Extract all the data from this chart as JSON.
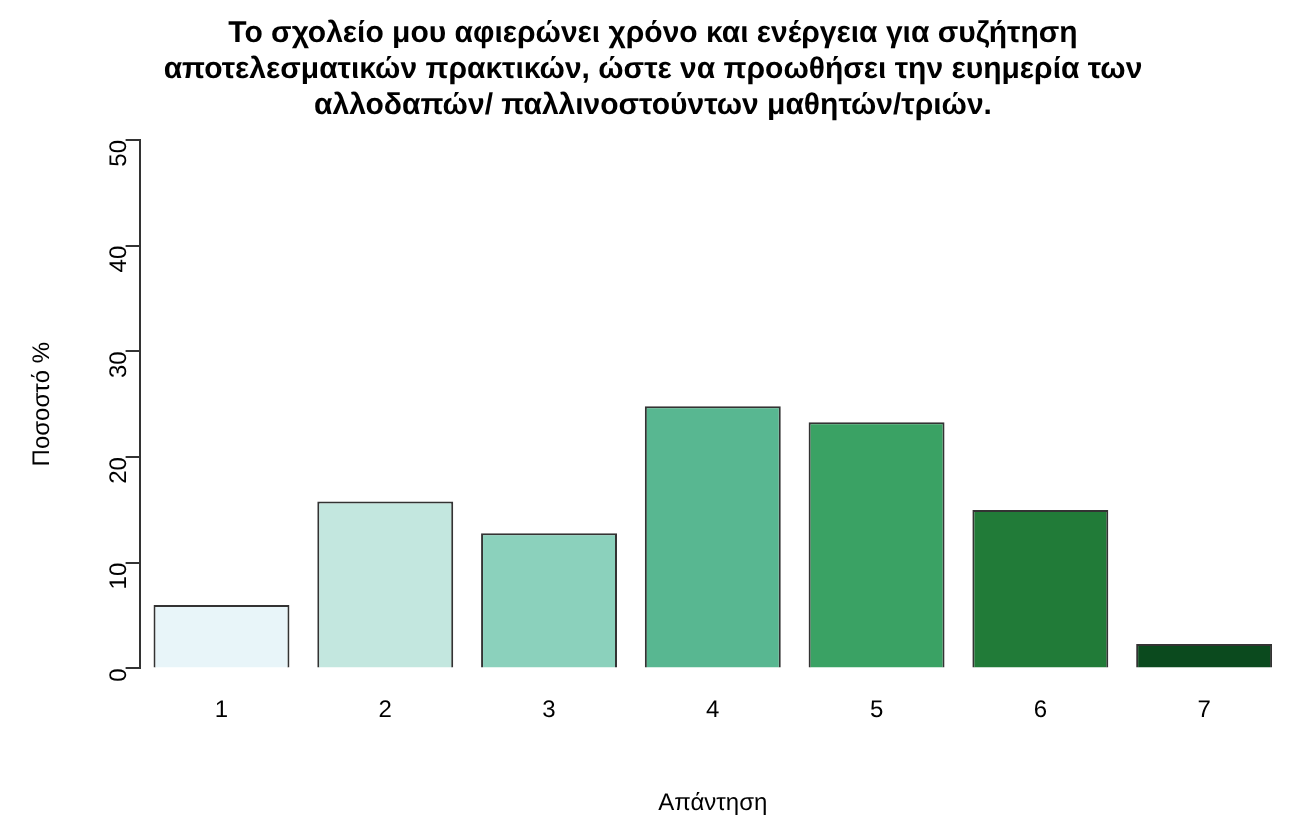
{
  "chart_data": {
    "type": "bar",
    "title": "Το σχολείο μου αφιερώνει χρόνο και ενέργεια για συζήτηση\nαποτελεσματικών πρακτικών, ώστε να προωθήσει την ευημερία των\nαλλοδαπών/ παλλινοστούντων μαθητών/τριών.",
    "xlabel": "Απάντηση",
    "ylabel": "Ποσοστό %",
    "categories": [
      "1",
      "2",
      "3",
      "4",
      "5",
      "6",
      "7"
    ],
    "values": [
      6.0,
      15.8,
      12.8,
      24.8,
      23.3,
      15.0,
      2.3
    ],
    "colors": [
      "#e8f5f9",
      "#c3e7df",
      "#8bd1bc",
      "#58b791",
      "#3aa264",
      "#217b38",
      "#0b4a1e"
    ],
    "ylim": [
      0,
      50
    ],
    "yticks": [
      0,
      10,
      20,
      30,
      40,
      50
    ],
    "grid": false,
    "legend": false
  }
}
